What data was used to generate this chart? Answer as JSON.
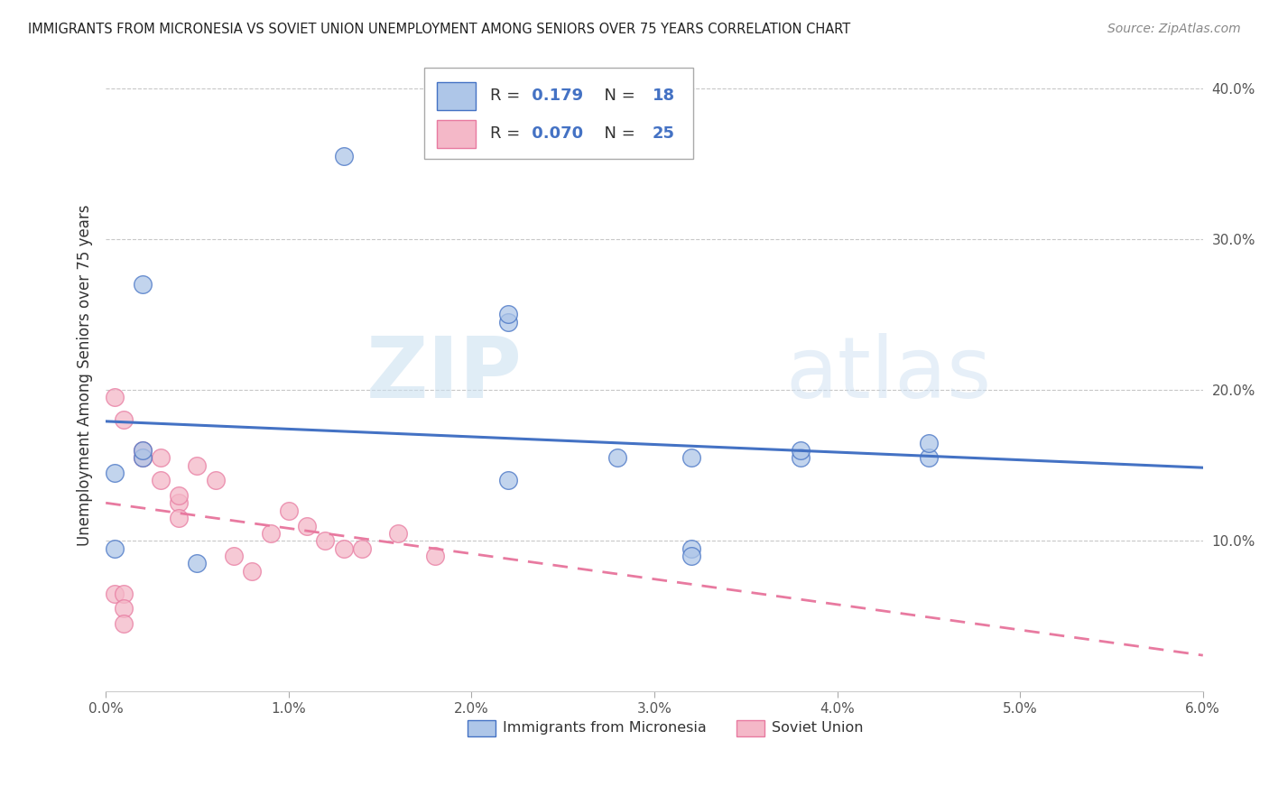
{
  "title": "IMMIGRANTS FROM MICRONESIA VS SOVIET UNION UNEMPLOYMENT AMONG SENIORS OVER 75 YEARS CORRELATION CHART",
  "source": "Source: ZipAtlas.com",
  "ylabel": "Unemployment Among Seniors over 75 years",
  "xlim": [
    0.0,
    0.06
  ],
  "ylim": [
    0.0,
    0.42
  ],
  "xtick_labels": [
    "0.0%",
    "1.0%",
    "2.0%",
    "3.0%",
    "4.0%",
    "5.0%",
    "6.0%"
  ],
  "xtick_values": [
    0.0,
    0.01,
    0.02,
    0.03,
    0.04,
    0.05,
    0.06
  ],
  "ytick_labels": [
    "10.0%",
    "20.0%",
    "30.0%",
    "40.0%"
  ],
  "ytick_values": [
    0.1,
    0.2,
    0.3,
    0.4
  ],
  "micronesia_R": "0.179",
  "micronesia_N": "18",
  "soviet_R": "0.070",
  "soviet_N": "25",
  "micronesia_color": "#aec6e8",
  "soviet_color": "#f4b8c8",
  "micronesia_line_color": "#4472c4",
  "soviet_line_color": "#e87aa0",
  "watermark_zip": "ZIP",
  "watermark_atlas": "atlas",
  "micronesia_x": [
    0.005,
    0.013,
    0.0005,
    0.002,
    0.002,
    0.0005,
    0.002,
    0.022,
    0.022,
    0.032,
    0.038,
    0.038,
    0.028,
    0.045,
    0.022,
    0.032,
    0.032,
    0.045
  ],
  "micronesia_y": [
    0.085,
    0.355,
    0.095,
    0.155,
    0.27,
    0.145,
    0.16,
    0.245,
    0.25,
    0.155,
    0.155,
    0.16,
    0.155,
    0.155,
    0.14,
    0.095,
    0.09,
    0.165
  ],
  "soviet_x": [
    0.0005,
    0.001,
    0.002,
    0.002,
    0.003,
    0.003,
    0.004,
    0.004,
    0.004,
    0.005,
    0.006,
    0.007,
    0.008,
    0.009,
    0.01,
    0.011,
    0.012,
    0.013,
    0.014,
    0.016,
    0.018,
    0.0005,
    0.001,
    0.001,
    0.001
  ],
  "soviet_y": [
    0.195,
    0.18,
    0.16,
    0.155,
    0.14,
    0.155,
    0.125,
    0.13,
    0.115,
    0.15,
    0.14,
    0.09,
    0.08,
    0.105,
    0.12,
    0.11,
    0.1,
    0.095,
    0.095,
    0.105,
    0.09,
    0.065,
    0.065,
    0.055,
    0.045
  ],
  "background_color": "#ffffff",
  "grid_color": "#c8c8c8"
}
